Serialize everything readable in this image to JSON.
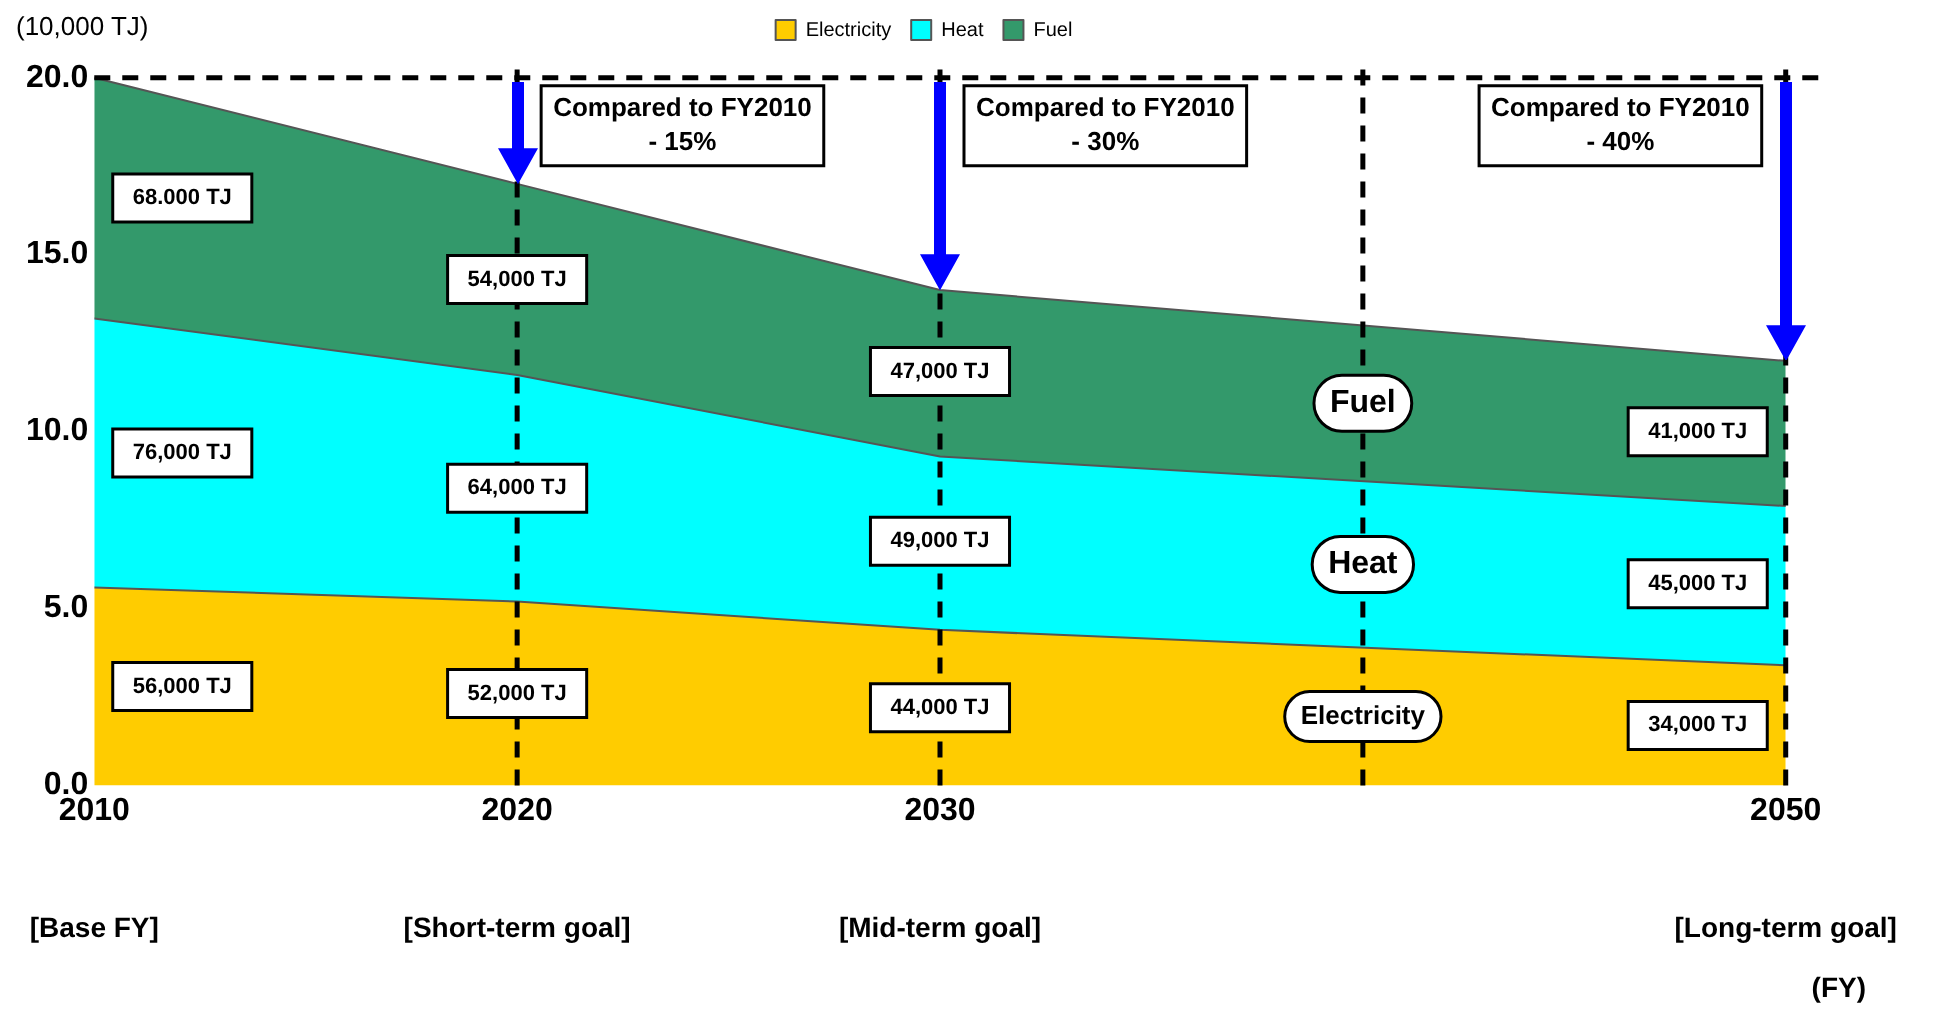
{
  "chart_data": {
    "type": "area",
    "stacked": true,
    "ylabel": "(10,000 TJ)",
    "x": [
      2010,
      2020,
      2030,
      2050
    ],
    "series": [
      {
        "name": "Electricity",
        "color": "#ffcc00",
        "values": [
          5.6,
          5.2,
          4.4,
          3.4
        ]
      },
      {
        "name": "Heat",
        "color": "#00ffff",
        "values": [
          7.6,
          6.4,
          4.9,
          4.5
        ]
      },
      {
        "name": "Fuel",
        "color": "#33996b",
        "values": [
          6.8,
          5.4,
          4.7,
          4.1
        ]
      }
    ],
    "xlim": [
      2010,
      2051
    ],
    "xticks": [
      2010,
      2020,
      2030,
      2050
    ],
    "ylim": [
      0,
      20.5
    ],
    "yticks": [
      {
        "value": 0,
        "label": "0.0"
      },
      {
        "value": 5,
        "label": "5.0"
      },
      {
        "value": 10,
        "label": "10.0"
      },
      {
        "value": 15,
        "label": "15.0"
      },
      {
        "value": 20,
        "label": "20.0"
      }
    ],
    "grid": false,
    "legend": "top",
    "marker": "none",
    "ref_lines": [
      {
        "axis": "y",
        "value": 20,
        "line_style": "dashed",
        "color": "#000000"
      },
      {
        "axis": "x",
        "value": 2020,
        "line_style": "dashed",
        "color": "#000000"
      },
      {
        "axis": "x",
        "value": 2030,
        "line_style": "dashed",
        "color": "#000000"
      },
      {
        "axis": "x",
        "value": 2040,
        "line_style": "dashed",
        "color": "#000000"
      },
      {
        "axis": "x",
        "value": 2050,
        "line_style": "dashed",
        "color": "#000000"
      }
    ],
    "annotations": [
      {
        "text": "Compared to FY2010\n- 15%",
        "x": 2020,
        "y": 20
      },
      {
        "text": "Compared to FY2010\n- 30%",
        "x": 2030,
        "y": 20
      },
      {
        "text": "Compared to FY2010\n- 40%",
        "x": 2050,
        "y": 20
      },
      {
        "text": "56,000 TJ",
        "x": 2010,
        "y": 2.8
      },
      {
        "text": "52,000 TJ",
        "x": 2020,
        "y": 2.6
      },
      {
        "text": "44,000 TJ",
        "x": 2030,
        "y": 2.2
      },
      {
        "text": "34,000 TJ",
        "x": 2050,
        "y": 1.7
      },
      {
        "text": "76,000 TJ",
        "x": 2010,
        "y": 9.4
      },
      {
        "text": "64,000 TJ",
        "x": 2020,
        "y": 8.4
      },
      {
        "text": "49,000 TJ",
        "x": 2030,
        "y": 6.9
      },
      {
        "text": "45,000 TJ",
        "x": 2050,
        "y": 5.7
      },
      {
        "text": "68.000 TJ",
        "x": 2010,
        "y": 16.6
      },
      {
        "text": "54,000 TJ",
        "x": 2020,
        "y": 14.3
      },
      {
        "text": "47,000 TJ",
        "x": 2030,
        "y": 11.7
      },
      {
        "text": "41,000 TJ",
        "x": 2050,
        "y": 10.0
      },
      "[Base FY]",
      "[Short-term goal]",
      "[Mid-term goal]",
      "[Long-term goal]",
      "(FY)"
    ]
  }
}
